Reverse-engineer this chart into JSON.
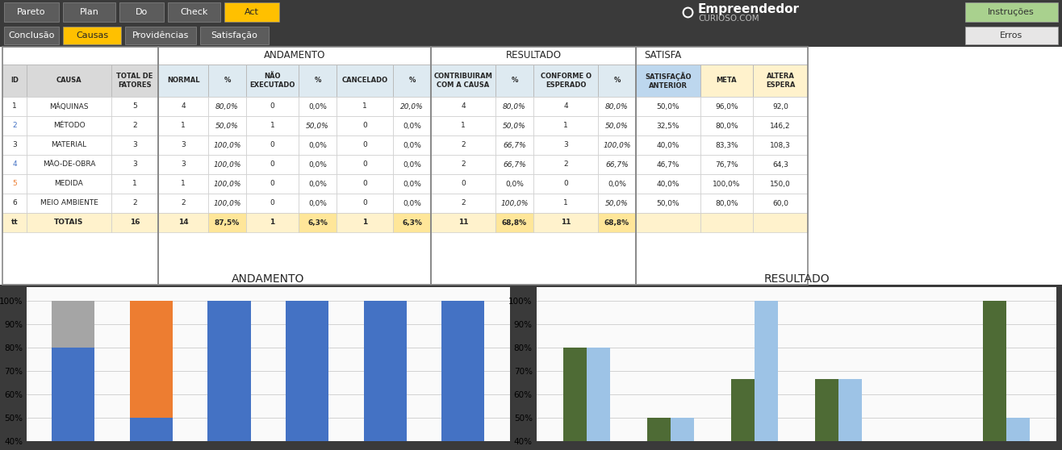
{
  "nav_buttons_top": [
    "Pareto",
    "Plan",
    "Do",
    "Check",
    "Act"
  ],
  "nav_buttons_bottom": [
    "Conclusão",
    "Causas",
    "Providências",
    "Satisfação"
  ],
  "active_top": "Act",
  "active_bottom": "Causas",
  "right_buttons_top": "Instruções",
  "right_buttons_bot": "Erros",
  "rows": [
    {
      "id": "1",
      "causa": "MÁQUINAS",
      "total": "5",
      "normal": "4",
      "pct1": "80,0%",
      "nao_exec": "0",
      "pct2": "0,0%",
      "cancel": "1",
      "pct3": "20,0%",
      "contrib": "4",
      "pct4": "80,0%",
      "conforme": "4",
      "pct5": "80,0%",
      "satisf": "50,0%",
      "meta": "96,0%",
      "altera": "92,0"
    },
    {
      "id": "2",
      "causa": "MÉTODO",
      "total": "2",
      "normal": "1",
      "pct1": "50,0%",
      "nao_exec": "1",
      "pct2": "50,0%",
      "cancel": "0",
      "pct3": "0,0%",
      "contrib": "1",
      "pct4": "50,0%",
      "conforme": "1",
      "pct5": "50,0%",
      "satisf": "32,5%",
      "meta": "80,0%",
      "altera": "146,2"
    },
    {
      "id": "3",
      "causa": "MATERIAL",
      "total": "3",
      "normal": "3",
      "pct1": "100,0%",
      "nao_exec": "0",
      "pct2": "0,0%",
      "cancel": "0",
      "pct3": "0,0%",
      "contrib": "2",
      "pct4": "66,7%",
      "conforme": "3",
      "pct5": "100,0%",
      "satisf": "40,0%",
      "meta": "83,3%",
      "altera": "108,3"
    },
    {
      "id": "4",
      "causa": "MÃO-DE-OBRA",
      "total": "3",
      "normal": "3",
      "pct1": "100,0%",
      "nao_exec": "0",
      "pct2": "0,0%",
      "cancel": "0",
      "pct3": "0,0%",
      "contrib": "2",
      "pct4": "66,7%",
      "conforme": "2",
      "pct5": "66,7%",
      "satisf": "46,7%",
      "meta": "76,7%",
      "altera": "64,3"
    },
    {
      "id": "5",
      "causa": "MEDIDA",
      "total": "1",
      "normal": "1",
      "pct1": "100,0%",
      "nao_exec": "0",
      "pct2": "0,0%",
      "cancel": "0",
      "pct3": "0,0%",
      "contrib": "0",
      "pct4": "0,0%",
      "conforme": "0",
      "pct5": "0,0%",
      "satisf": "40,0%",
      "meta": "100,0%",
      "altera": "150,0"
    },
    {
      "id": "6",
      "causa": "MEIO AMBIENTE",
      "total": "2",
      "normal": "2",
      "pct1": "100,0%",
      "nao_exec": "0",
      "pct2": "0,0%",
      "cancel": "0",
      "pct3": "0,0%",
      "contrib": "2",
      "pct4": "100,0%",
      "conforme": "1",
      "pct5": "50,0%",
      "satisf": "50,0%",
      "meta": "80,0%",
      "altera": "60,0"
    },
    {
      "id": "tt",
      "causa": "TOTAIS",
      "total": "16",
      "normal": "14",
      "pct1": "87,5%",
      "nao_exec": "1",
      "pct2": "6,3%",
      "cancel": "1",
      "pct3": "6,3%",
      "contrib": "11",
      "pct4": "68,8%",
      "conforme": "11",
      "pct5": "68,8%",
      "satisf": "",
      "meta": "",
      "altera": ""
    }
  ],
  "chart_andamento": {
    "title": "ANDAMENTO",
    "normal_pct": [
      80.0,
      50.0,
      100.0,
      100.0,
      100.0,
      100.0
    ],
    "nao_exec_pct": [
      0.0,
      50.0,
      0.0,
      0.0,
      0.0,
      0.0
    ],
    "cancel_pct": [
      20.0,
      0.0,
      0.0,
      0.0,
      0.0,
      0.0
    ],
    "color_normal": "#4472C4",
    "color_nao_exec": "#ED7D31",
    "color_cancel": "#A5A5A5"
  },
  "chart_resultado": {
    "title": "RESULTADO",
    "contrib_pct": [
      80.0,
      50.0,
      66.7,
      66.7,
      0.0,
      100.0
    ],
    "conforme_pct": [
      80.0,
      50.0,
      100.0,
      66.7,
      0.0,
      50.0
    ],
    "color_contrib": "#4E6B35",
    "color_conforme": "#9DC3E6"
  },
  "bg_dark": "#3A3A3A",
  "bg_white": "#FFFFFF",
  "bg_light_gray": "#D9D9D9",
  "bg_yellow_light": "#FFF2CC",
  "bg_yellow_pct": "#FFE699",
  "bg_yellow_active": "#FFC000",
  "header_blue_bg": "#BDD7EE",
  "header_section_bg": "#DEEAF1",
  "header_ando_bg": "#F2F2F2",
  "text_blue": "#4472C4",
  "text_dark": "#262626",
  "text_orange": "#ED7D31",
  "green_button": "#A9D18E",
  "erros_bg": "#E7E6E6"
}
